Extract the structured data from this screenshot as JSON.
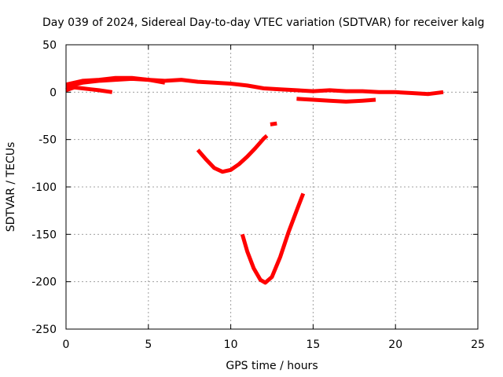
{
  "chart_data": {
    "type": "line",
    "title": "Day 039 of 2024, Sidereal Day-to-day VTEC variation (SDTVAR) for receiver kalg",
    "xlabel": "GPS time / hours",
    "ylabel": "SDTVAR / TECUs",
    "xlim": [
      0,
      25
    ],
    "ylim": [
      -250,
      50
    ],
    "xticks": [
      0,
      5,
      10,
      15,
      20,
      25
    ],
    "yticks": [
      -250,
      -200,
      -150,
      -100,
      -50,
      0,
      50
    ],
    "xtick_labels": [
      "0",
      "5",
      "10",
      "15",
      "20",
      "25"
    ],
    "ytick_labels": [
      "-250",
      "-200",
      "-150",
      "-100",
      "-50",
      "0",
      "50"
    ],
    "grid": true,
    "color": "#ff0000",
    "series": [
      {
        "points": [
          [
            0.0,
            6
          ],
          [
            1.0,
            10
          ],
          [
            2.0,
            12
          ],
          [
            3.0,
            13
          ],
          [
            4.0,
            14
          ],
          [
            5.0,
            13
          ],
          [
            6.0,
            12
          ],
          [
            7.0,
            13
          ],
          [
            8.0,
            11
          ],
          [
            9.0,
            10
          ],
          [
            10.0,
            9
          ],
          [
            11.0,
            7
          ],
          [
            12.0,
            4
          ],
          [
            13.0,
            3
          ],
          [
            14.0,
            2
          ],
          [
            15.0,
            1
          ],
          [
            16.0,
            2
          ],
          [
            17.0,
            1
          ],
          [
            18.0,
            1
          ],
          [
            19.0,
            0
          ],
          [
            20.0,
            0
          ],
          [
            21.0,
            -1
          ],
          [
            22.0,
            -2
          ],
          [
            22.9,
            0
          ]
        ]
      },
      {
        "points": [
          [
            0.0,
            2
          ],
          [
            0.5,
            5
          ],
          [
            1.0,
            4
          ],
          [
            1.5,
            3
          ],
          [
            2.0,
            2
          ],
          [
            2.8,
            0
          ]
        ]
      },
      {
        "points": [
          [
            0.0,
            8
          ],
          [
            1.0,
            12
          ],
          [
            2.0,
            13
          ],
          [
            3.0,
            15
          ],
          [
            4.0,
            15
          ],
          [
            5.0,
            13
          ],
          [
            6.0,
            10
          ]
        ]
      },
      {
        "points": [
          [
            14.0,
            -7
          ],
          [
            15.0,
            -8
          ],
          [
            16.0,
            -9
          ],
          [
            17.0,
            -10
          ],
          [
            18.0,
            -9
          ],
          [
            18.8,
            -8
          ]
        ]
      },
      {
        "points": [
          [
            12.4,
            -34
          ],
          [
            12.8,
            -33
          ]
        ]
      },
      {
        "points": [
          [
            8.0,
            -61
          ],
          [
            8.5,
            -71
          ],
          [
            9.0,
            -80
          ],
          [
            9.5,
            -84
          ],
          [
            10.0,
            -82
          ],
          [
            10.5,
            -76
          ],
          [
            11.0,
            -68
          ],
          [
            11.5,
            -59
          ],
          [
            12.0,
            -49
          ],
          [
            12.2,
            -46
          ]
        ]
      },
      {
        "points": [
          [
            10.7,
            -150
          ],
          [
            11.0,
            -168
          ],
          [
            11.4,
            -186
          ],
          [
            11.8,
            -198
          ],
          [
            12.1,
            -201
          ],
          [
            12.5,
            -195
          ],
          [
            13.0,
            -174
          ],
          [
            13.5,
            -148
          ],
          [
            14.0,
            -125
          ],
          [
            14.4,
            -107
          ]
        ]
      }
    ]
  }
}
